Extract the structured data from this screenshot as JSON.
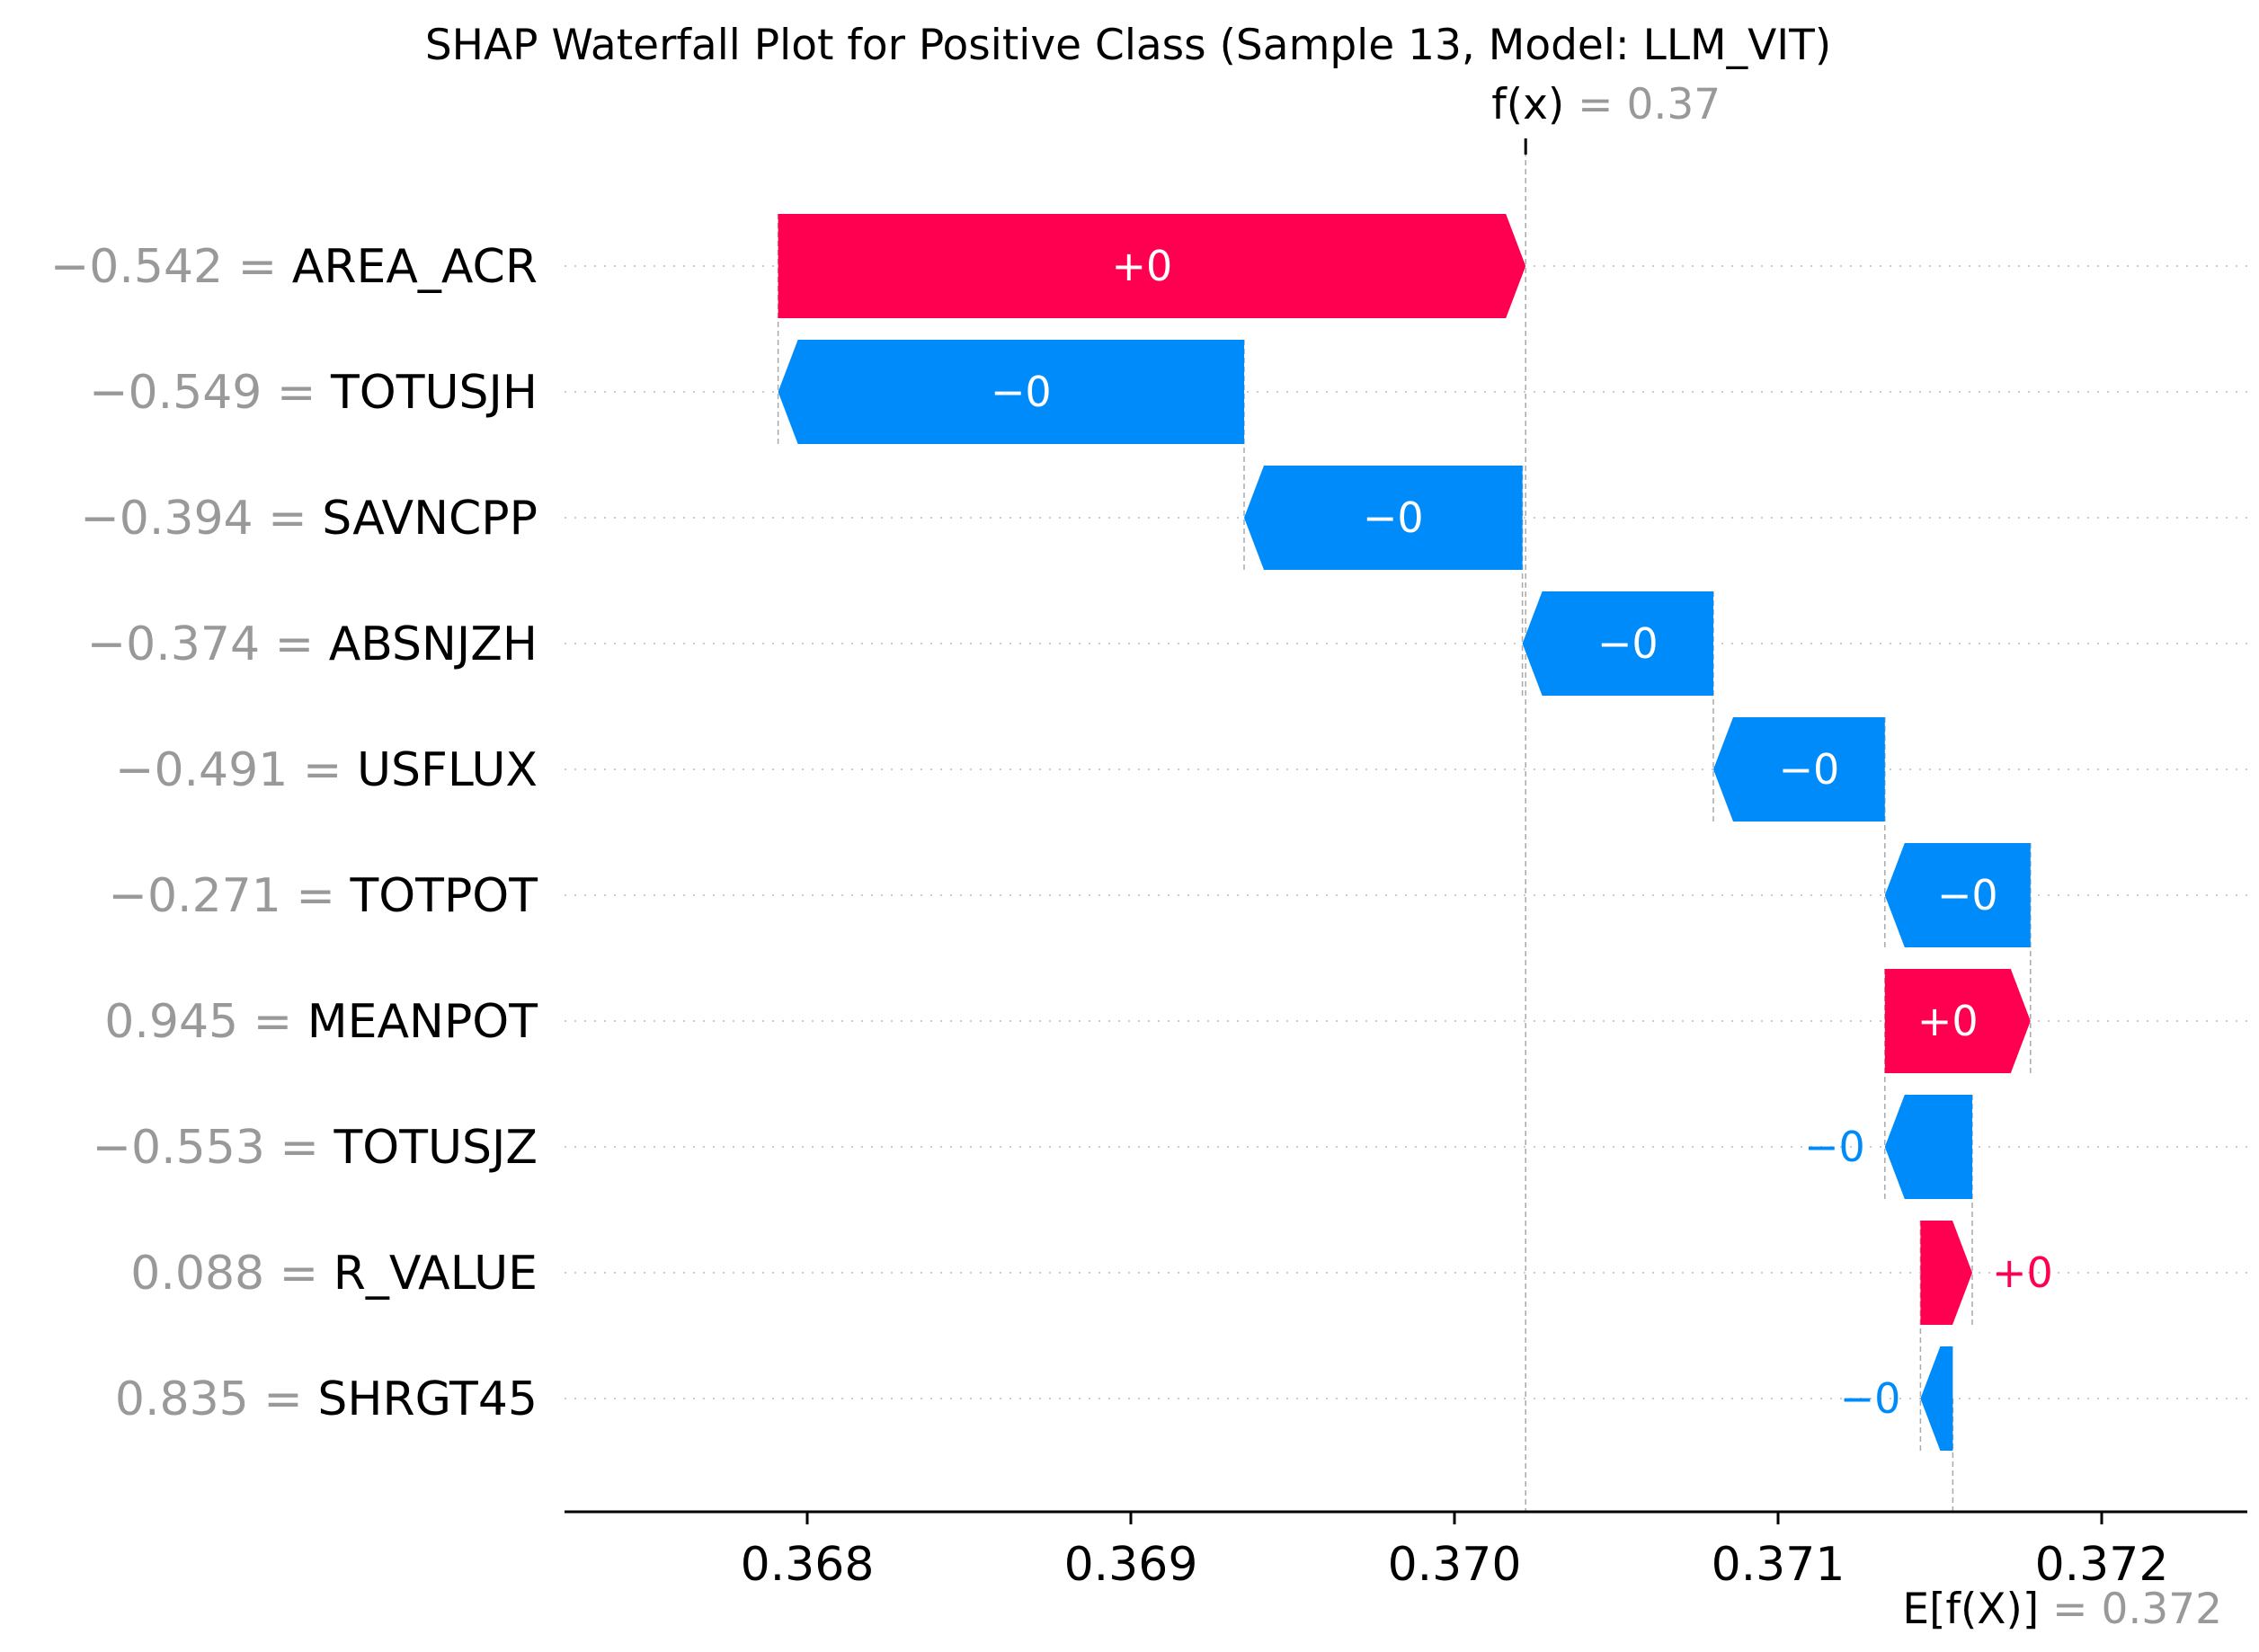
{
  "chart_data": {
    "type": "waterfall",
    "title": "SHAP Waterfall Plot for Positive Class (Sample 13, Model: LLM_VIT)",
    "fx": {
      "label": "f(x)",
      "eq": " = ",
      "value_text": "0.37",
      "value": 0.37022
    },
    "efx": {
      "label": "E[f(X)]",
      "eq": " = ",
      "value_text": "0.372",
      "value": 0.37154
    },
    "xlim": [
      0.36725,
      0.37245
    ],
    "xticks": [
      {
        "value": 0.368,
        "label": "0.368"
      },
      {
        "value": 0.369,
        "label": "0.369"
      },
      {
        "value": 0.37,
        "label": "0.370"
      },
      {
        "value": 0.371,
        "label": "0.371"
      },
      {
        "value": 0.372,
        "label": "0.372"
      }
    ],
    "features": [
      {
        "name": "AREA_ACR",
        "value_text": "−0.542",
        "eq": " = ",
        "start": 0.36791,
        "end": 0.37022,
        "label": "+0",
        "sign": "positive"
      },
      {
        "name": "TOTUSJH",
        "value_text": "−0.549",
        "eq": " = ",
        "start": 0.36935,
        "end": 0.36791,
        "label": "−0",
        "sign": "negative"
      },
      {
        "name": "SAVNCPP",
        "value_text": "−0.394",
        "eq": " = ",
        "start": 0.37021,
        "end": 0.36935,
        "label": "−0",
        "sign": "negative"
      },
      {
        "name": "ABSNJZH",
        "value_text": "−0.374",
        "eq": " = ",
        "start": 0.3708,
        "end": 0.37021,
        "label": "−0",
        "sign": "negative"
      },
      {
        "name": "USFLUX",
        "value_text": "−0.491",
        "eq": " = ",
        "start": 0.37133,
        "end": 0.3708,
        "label": "−0",
        "sign": "negative"
      },
      {
        "name": "TOTPOT",
        "value_text": "−0.271",
        "eq": " = ",
        "start": 0.37178,
        "end": 0.37133,
        "label": "−0",
        "sign": "negative"
      },
      {
        "name": "MEANPOT",
        "value_text": "0.945",
        "eq": " = ",
        "start": 0.37133,
        "end": 0.37178,
        "label": "+0",
        "sign": "positive"
      },
      {
        "name": "TOTUSJZ",
        "value_text": "−0.553",
        "eq": " = ",
        "start": 0.3716,
        "end": 0.37133,
        "label": "−0",
        "sign": "negative"
      },
      {
        "name": "R_VALUE",
        "value_text": "0.088",
        "eq": " = ",
        "start": 0.37144,
        "end": 0.3716,
        "label": "+0",
        "sign": "positive"
      },
      {
        "name": "SHRGT45",
        "value_text": "0.835",
        "eq": " = ",
        "start": 0.37154,
        "end": 0.37144,
        "label": "−0",
        "sign": "negative"
      }
    ],
    "colors": {
      "positive": "#ff0051",
      "negative": "#008bfb",
      "bar_text": "#ffffff",
      "value_gray": "#999999",
      "gridline": "#cccccc",
      "axis": "#000000"
    },
    "grid": "horizontal dotted"
  }
}
